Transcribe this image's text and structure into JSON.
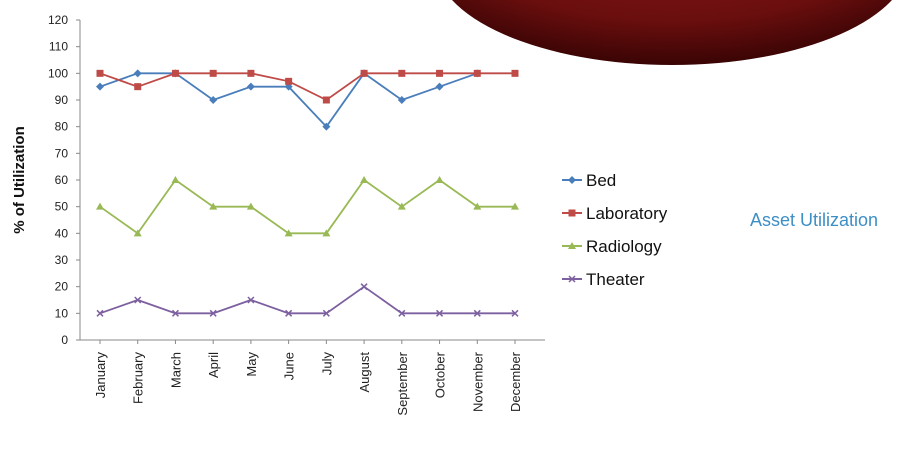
{
  "side_caption": "Asset Utilization",
  "chart_data": {
    "type": "line",
    "title": "",
    "xlabel": "",
    "ylabel": "% of Utilization",
    "ylim": [
      0,
      120
    ],
    "yticks": [
      0,
      10,
      20,
      30,
      40,
      50,
      60,
      70,
      80,
      90,
      100,
      110,
      120
    ],
    "grid": false,
    "legend_position": "right",
    "categories": [
      "January",
      "February",
      "March",
      "April",
      "May",
      "June",
      "July",
      "August",
      "September",
      "October",
      "November",
      "December"
    ],
    "series": [
      {
        "name": "Bed",
        "color": "#4a7ebb",
        "marker": "diamond",
        "values": [
          95,
          100,
          100,
          90,
          95,
          95,
          80,
          100,
          90,
          95,
          100,
          null
        ]
      },
      {
        "name": "Laboratory",
        "color": "#be4b48",
        "marker": "square",
        "values": [
          100,
          95,
          100,
          100,
          100,
          97,
          90,
          100,
          100,
          100,
          100,
          100
        ]
      },
      {
        "name": "Radiology",
        "color": "#98b954",
        "marker": "triangle",
        "values": [
          50,
          40,
          60,
          50,
          50,
          40,
          40,
          60,
          50,
          60,
          50,
          50
        ]
      },
      {
        "name": "Theater",
        "color": "#7d60a0",
        "marker": "x",
        "values": [
          10,
          15,
          10,
          10,
          15,
          10,
          10,
          20,
          10,
          10,
          10,
          10
        ]
      }
    ]
  }
}
